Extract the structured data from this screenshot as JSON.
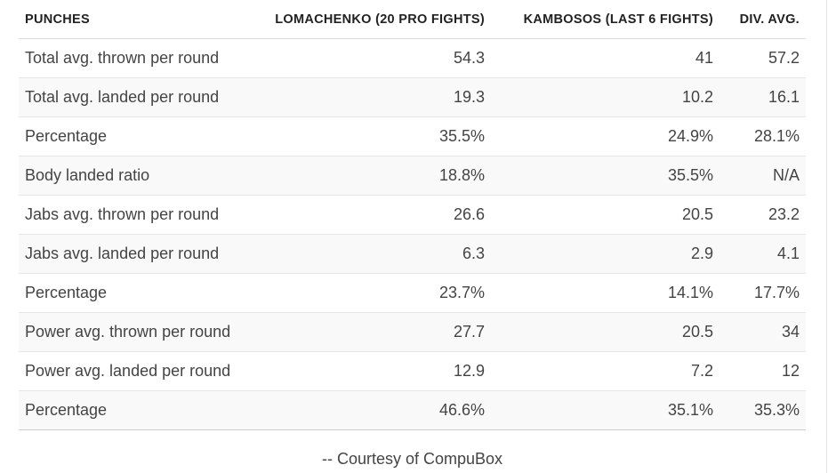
{
  "table": {
    "headers": [
      "PUNCHES",
      "LOMACHENKO (20 PRO FIGHTS)",
      "KAMBOSOS (LAST 6 FIGHTS)",
      "DIV. AVG."
    ],
    "rows": [
      [
        "Total avg. thrown per round",
        "54.3",
        "41",
        "57.2"
      ],
      [
        "Total avg. landed per round",
        "19.3",
        "10.2",
        "16.1"
      ],
      [
        "Percentage",
        "35.5%",
        "24.9%",
        "28.1%"
      ],
      [
        "Body landed ratio",
        "18.8%",
        "35.5%",
        "N/A"
      ],
      [
        "Jabs avg. thrown per round",
        "26.6",
        "20.5",
        "23.2"
      ],
      [
        "Jabs avg. landed per round",
        "6.3",
        "2.9",
        "4.1"
      ],
      [
        "Percentage",
        "23.7%",
        "14.1%",
        "17.7%"
      ],
      [
        "Power avg. thrown per round",
        "27.7",
        "20.5",
        "34"
      ],
      [
        "Power avg. landed per round",
        "12.9",
        "7.2",
        "12"
      ],
      [
        "Percentage",
        "46.6%",
        "35.1%",
        "35.3%"
      ]
    ]
  },
  "credit": "-- Courtesy of CompuBox"
}
